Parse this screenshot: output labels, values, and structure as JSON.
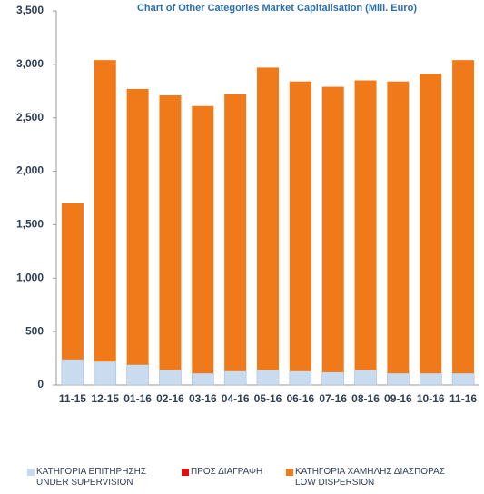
{
  "chart_data": {
    "type": "bar",
    "stacked": true,
    "title": "Chart of Other Categories Market Capitalisation (Mill. Euro)",
    "categories": [
      "11-15",
      "12-15",
      "01-16",
      "02-16",
      "03-16",
      "04-16",
      "05-16",
      "06-16",
      "07-16",
      "08-16",
      "09-16",
      "10-16",
      "11-16"
    ],
    "series": [
      {
        "name": "ΚΑΤΗΓΟΡΙΑ ΕΠΙΤΗΡΗΣΗΣ\nUNDER SUPERVISION",
        "color": "#c9dcef",
        "values": [
          240,
          220,
          190,
          140,
          110,
          130,
          140,
          130,
          120,
          140,
          110,
          110,
          110
        ]
      },
      {
        "name": "ΠΡΟΣ ΔΙΑΓΡΑΦΗ",
        "color": "#e01010",
        "values": [
          0,
          0,
          0,
          0,
          0,
          0,
          0,
          0,
          0,
          0,
          0,
          0,
          0
        ]
      },
      {
        "name": "ΚΑΤΗΓΟΡΙΑ ΧΑΜΗΛΗΣ ΔΙΑΣΠΟΡΑΣ\nLOW DISPERSION",
        "color": "#f07a1a",
        "values": [
          1460,
          2820,
          2580,
          2570,
          2500,
          2590,
          2830,
          2710,
          2670,
          2710,
          2730,
          2800,
          2930
        ]
      }
    ],
    "ylim": [
      0,
      3500
    ],
    "yticks": [
      0,
      500,
      {
        "value": 1000,
        "label": "1,000"
      },
      {
        "value": 1500,
        "label": "1,500"
      },
      {
        "value": 2000,
        "label": "2,000"
      },
      {
        "value": 2500,
        "label": "2,500"
      },
      {
        "value": 3000,
        "label": "3,000"
      },
      {
        "value": 3500,
        "label": "3,500"
      }
    ],
    "grid": false
  }
}
